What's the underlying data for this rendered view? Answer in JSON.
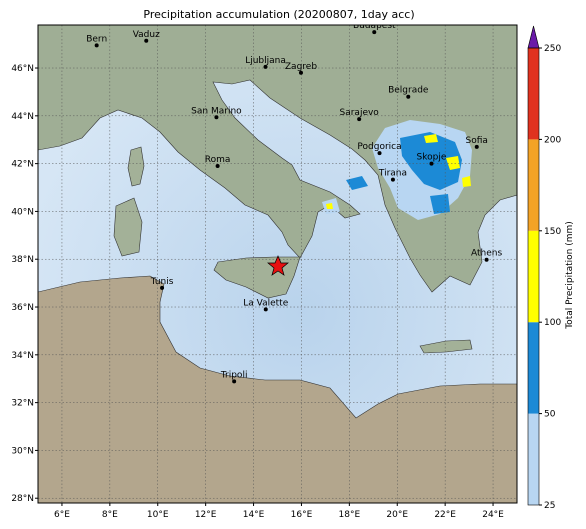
{
  "title": "Precipitation accumulation (20200807, 1day acc)",
  "map": {
    "xlim": [
      5,
      25
    ],
    "ylim": [
      27.8,
      47.8
    ],
    "xticks": [
      {
        "value": 6,
        "label": "6°E"
      },
      {
        "value": 8,
        "label": "8°E"
      },
      {
        "value": 10,
        "label": "10°E"
      },
      {
        "value": 12,
        "label": "12°E"
      },
      {
        "value": 14,
        "label": "14°E"
      },
      {
        "value": 16,
        "label": "16°E"
      },
      {
        "value": 18,
        "label": "18°E"
      },
      {
        "value": 20,
        "label": "20°E"
      },
      {
        "value": 22,
        "label": "22°E"
      },
      {
        "value": 24,
        "label": "24°E"
      }
    ],
    "yticks": [
      {
        "value": 28,
        "label": "28°N"
      },
      {
        "value": 30,
        "label": "30°N"
      },
      {
        "value": 32,
        "label": "32°N"
      },
      {
        "value": 34,
        "label": "34°N"
      },
      {
        "value": 36,
        "label": "36°N"
      },
      {
        "value": 38,
        "label": "38°N"
      },
      {
        "value": 40,
        "label": "40°N"
      },
      {
        "value": 42,
        "label": "42°N"
      },
      {
        "value": 44,
        "label": "44°N"
      },
      {
        "value": 46,
        "label": "46°N"
      }
    ],
    "cities": [
      {
        "name": "Bern",
        "lon": 7.45,
        "lat": 46.95
      },
      {
        "name": "Vaduz",
        "lon": 9.52,
        "lat": 47.14
      },
      {
        "name": "Budapest",
        "lon": 19.04,
        "lat": 47.5
      },
      {
        "name": "Ljubljana",
        "lon": 14.5,
        "lat": 46.05
      },
      {
        "name": "Zagreb",
        "lon": 15.98,
        "lat": 45.8
      },
      {
        "name": "Belgrade",
        "lon": 20.46,
        "lat": 44.8
      },
      {
        "name": "San Marino",
        "lon": 12.45,
        "lat": 43.94
      },
      {
        "name": "Sarajevo",
        "lon": 18.41,
        "lat": 43.86
      },
      {
        "name": "Sofia",
        "lon": 23.32,
        "lat": 42.7
      },
      {
        "name": "Podgorica",
        "lon": 19.26,
        "lat": 42.44
      },
      {
        "name": "Skopje",
        "lon": 21.43,
        "lat": 42.0
      },
      {
        "name": "Roma",
        "lon": 12.5,
        "lat": 41.9
      },
      {
        "name": "Tirana",
        "lon": 19.82,
        "lat": 41.33
      },
      {
        "name": "Athens",
        "lon": 23.73,
        "lat": 37.98
      },
      {
        "name": "Tunis",
        "lon": 10.18,
        "lat": 36.8
      },
      {
        "name": "La Valette",
        "lon": 14.51,
        "lat": 35.9
      },
      {
        "name": "Tripoli",
        "lon": 13.19,
        "lat": 32.89
      }
    ]
  },
  "colorbar": {
    "label": "Total Precipitation (mm)",
    "levels": [
      25,
      50,
      100,
      150,
      200,
      250
    ],
    "colors": [
      "#b8d6f2",
      "#1c8ad6",
      "#ffff00",
      "#f4a326",
      "#e0321f"
    ],
    "extend_color": "#6a1aa8"
  }
}
